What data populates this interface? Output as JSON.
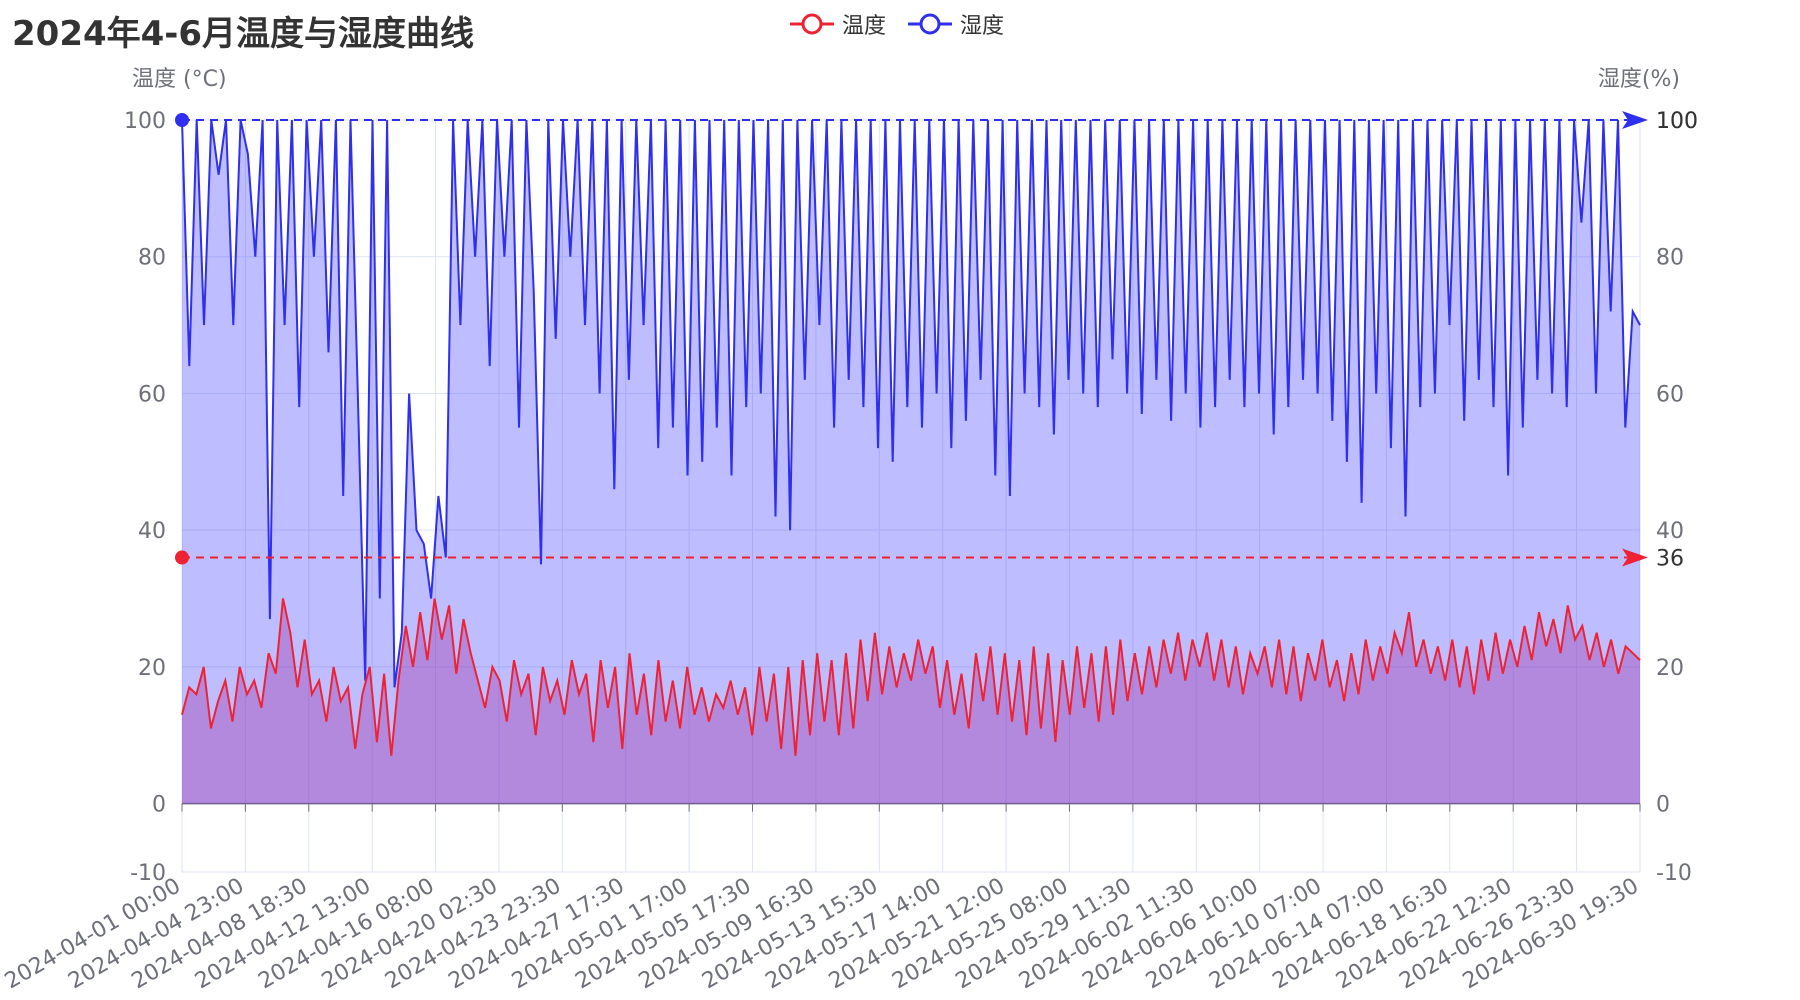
{
  "chart_data": {
    "type": "line",
    "title": "2024年4-6月温度与湿度曲线",
    "legend": {
      "position": "top-center",
      "items": [
        "温度",
        "湿度"
      ]
    },
    "left_axis": {
      "name": "温度 (°C)",
      "min": -10,
      "max": 100,
      "ticks": [
        -10,
        0,
        20,
        40,
        60,
        80,
        100
      ]
    },
    "right_axis": {
      "name": "湿度(%)",
      "min": -10,
      "max": 100,
      "ticks": [
        -10,
        0,
        20,
        40,
        60,
        80,
        100
      ]
    },
    "x_axis": {
      "labels": [
        "2024-04-01 00:00",
        "2024-04-04 23:00",
        "2024-04-08 18:30",
        "2024-04-12 13:00",
        "2024-04-16 08:00",
        "2024-04-20 02:30",
        "2024-04-23 23:30",
        "2024-04-27 17:30",
        "2024-05-01 17:00",
        "2024-05-05 17:30",
        "2024-05-09 16:30",
        "2024-05-13 15:30",
        "2024-05-17 14:00",
        "2024-05-21 12:00",
        "2024-05-25 08:00",
        "2024-05-29 11:30",
        "2024-06-02 11:30",
        "2024-06-06 10:00",
        "2024-06-10 07:00",
        "2024-06-14 07:00",
        "2024-06-18 16:30",
        "2024-06-22 12:30",
        "2024-06-26 23:30",
        "2024-06-30 19:30"
      ],
      "start": "2024-04-01 00:00",
      "end": "2024-06-30 23:30"
    },
    "grid": true,
    "series": [
      {
        "name": "温度",
        "color": "#ee2233",
        "area": true,
        "area_color": "rgba(160,40,160,0.35)",
        "marker": {
          "label": "36",
          "value": 36
        },
        "values": [
          13,
          17,
          16,
          20,
          11,
          15,
          18,
          12,
          20,
          16,
          18,
          14,
          22,
          19,
          30,
          25,
          17,
          24,
          16,
          18,
          12,
          20,
          15,
          17,
          8,
          16,
          20,
          9,
          19,
          7,
          18,
          26,
          20,
          28,
          21,
          30,
          24,
          29,
          19,
          27,
          22,
          18,
          14,
          20,
          18,
          12,
          21,
          16,
          19,
          10,
          20,
          15,
          18,
          13,
          21,
          16,
          19,
          9,
          21,
          14,
          20,
          8,
          22,
          13,
          19,
          10,
          21,
          12,
          18,
          11,
          20,
          13,
          17,
          12,
          16,
          14,
          18,
          13,
          17,
          10,
          20,
          12,
          19,
          8,
          20,
          7,
          21,
          10,
          22,
          12,
          21,
          10,
          22,
          11,
          24,
          15,
          25,
          16,
          23,
          17,
          22,
          18,
          24,
          19,
          23,
          14,
          21,
          13,
          19,
          11,
          22,
          15,
          23,
          13,
          22,
          12,
          21,
          10,
          23,
          11,
          22,
          9,
          21,
          13,
          23,
          14,
          22,
          12,
          23,
          13,
          24,
          15,
          22,
          16,
          23,
          17,
          24,
          19,
          25,
          18,
          24,
          20,
          25,
          18,
          24,
          17,
          23,
          16,
          22,
          19,
          23,
          17,
          24,
          16,
          23,
          15,
          22,
          18,
          24,
          17,
          21,
          15,
          22,
          16,
          24,
          18,
          23,
          19,
          25,
          22,
          28,
          20,
          24,
          19,
          23,
          18,
          24,
          17,
          23,
          16,
          24,
          18,
          25,
          19,
          24,
          20,
          26,
          21,
          28,
          23,
          27,
          22,
          29,
          24,
          26,
          21,
          25,
          20,
          24,
          19,
          23,
          22,
          21
        ]
      },
      {
        "name": "湿度",
        "color": "#2f2ff0",
        "area": true,
        "area_color": "rgba(90,90,255,0.40)",
        "marker": {
          "label": "100",
          "value": 100
        },
        "values": [
          100,
          64,
          100,
          70,
          100,
          92,
          100,
          70,
          100,
          95,
          80,
          100,
          27,
          100,
          70,
          100,
          58,
          100,
          80,
          100,
          66,
          100,
          45,
          100,
          60,
          18,
          100,
          30,
          100,
          17,
          25,
          60,
          40,
          38,
          30,
          45,
          36,
          100,
          70,
          100,
          80,
          100,
          64,
          100,
          80,
          100,
          55,
          100,
          75,
          35,
          100,
          68,
          100,
          80,
          100,
          70,
          100,
          60,
          100,
          46,
          100,
          62,
          100,
          70,
          100,
          52,
          100,
          55,
          100,
          48,
          100,
          50,
          100,
          55,
          100,
          48,
          100,
          58,
          100,
          60,
          100,
          42,
          100,
          40,
          100,
          62,
          100,
          70,
          100,
          55,
          100,
          62,
          100,
          58,
          100,
          52,
          100,
          50,
          100,
          58,
          100,
          55,
          100,
          60,
          100,
          52,
          100,
          56,
          100,
          62,
          100,
          48,
          100,
          45,
          100,
          60,
          100,
          58,
          100,
          54,
          100,
          62,
          100,
          60,
          100,
          58,
          100,
          65,
          100,
          60,
          100,
          57,
          100,
          62,
          100,
          56,
          100,
          60,
          100,
          55,
          100,
          58,
          100,
          62,
          100,
          58,
          100,
          60,
          100,
          54,
          100,
          58,
          100,
          62,
          100,
          60,
          100,
          56,
          100,
          50,
          100,
          44,
          100,
          60,
          100,
          52,
          100,
          42,
          100,
          58,
          100,
          60,
          100,
          70,
          100,
          56,
          100,
          62,
          100,
          58,
          100,
          48,
          100,
          55,
          100,
          62,
          100,
          60,
          100,
          58,
          100,
          85,
          100,
          60,
          100,
          72,
          100,
          55,
          72,
          70
        ]
      }
    ]
  }
}
